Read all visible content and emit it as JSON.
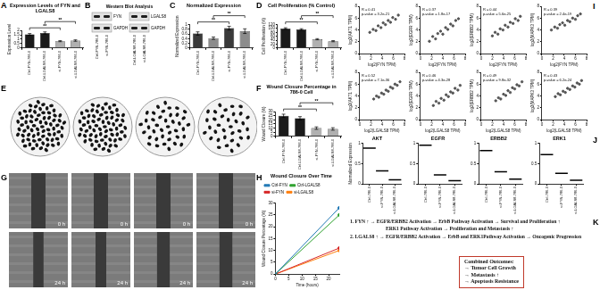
{
  "chart_data": [
    {
      "panel": "A",
      "type": "bar",
      "title": "Expression Levels of FYN and LGALS8",
      "categories": [
        "Ctrl-FYN-786-0",
        "Ctrl-LGALS8-786-0",
        "si-FYN-786-0",
        "si-LGALS8-786-0"
      ],
      "values": [
        1.55,
        1.72,
        0.78,
        0.85
      ],
      "errors": [
        0.1,
        0.12,
        0.06,
        0.08
      ],
      "colors": [
        "#1a1a1a",
        "#1a1a1a",
        "#b0b0b0",
        "#b0b0b0"
      ],
      "y_label": "Expression Level",
      "ylim": [
        0,
        2
      ],
      "yticks": [
        0,
        0.5,
        1,
        1.5,
        2
      ],
      "grid": false,
      "significance": [
        {
          "between": [
            0,
            2
          ],
          "label": "**"
        },
        {
          "between": [
            1,
            3
          ],
          "label": "**"
        }
      ]
    },
    {
      "panel": "C",
      "type": "bar",
      "title": "Normalized Expression",
      "categories": [
        "Ctrl-FYN-786-0",
        "Ctrl-LGALS8-786-0",
        "si-FYN-786-0",
        "si-LGALS8-786-0"
      ],
      "values": [
        0.62,
        0.42,
        0.85,
        0.72
      ],
      "errors": [
        0.07,
        0.05,
        0.08,
        0.1
      ],
      "colors": [
        "#3a3a3a",
        "#8c8c8c",
        "#3a3a3a",
        "#8c8c8c"
      ],
      "y_label": "Normalized Expression",
      "ylim": [
        0,
        1
      ],
      "yticks": [
        0,
        0.2,
        0.4,
        0.6,
        0.8,
        1
      ],
      "grid": false,
      "significance": [
        {
          "between": [
            0,
            2
          ],
          "label": "**"
        },
        {
          "between": [
            1,
            3
          ],
          "label": "**"
        }
      ]
    },
    {
      "panel": "D",
      "type": "bar",
      "title": "Cell Proliferation (% Control)",
      "categories": [
        "Ctrl-FYN-786-0",
        "Ctrl-LGALS8-786-0",
        "si-FYN-786-0",
        "si-LGALS8-786-0"
      ],
      "values": [
        100,
        95,
        45,
        35
      ],
      "errors": [
        4,
        4,
        3,
        3
      ],
      "colors": [
        "#1a1a1a",
        "#1a1a1a",
        "#b0b0b0",
        "#b0b0b0"
      ],
      "y_label": "Cell Proliferation (%)",
      "ylim": [
        0,
        120
      ],
      "yticks": [
        0,
        20,
        40,
        60,
        80,
        100,
        120
      ],
      "grid": false,
      "significance": [
        {
          "between": [
            0,
            2
          ],
          "label": "**"
        },
        {
          "between": [
            1,
            3
          ],
          "label": "**"
        }
      ]
    },
    {
      "panel": "F",
      "type": "bar",
      "title": "Wound Closure Percentage in 786-0 Cell",
      "categories": [
        "Ctrl-FYN-786-0",
        "Ctrl-LGALS8-786-0",
        "si-FYN-786-0",
        "si-LGALS8-786-0"
      ],
      "values": [
        25,
        22,
        10,
        9
      ],
      "errors": [
        2,
        2,
        1.5,
        1.5
      ],
      "colors": [
        "#1a1a1a",
        "#1a1a1a",
        "#b0b0b0",
        "#b0b0b0"
      ],
      "y_label": "Wound Closure (%)",
      "ylim": [
        0,
        30
      ],
      "yticks": [
        0,
        5,
        10,
        15,
        20,
        25,
        30
      ],
      "grid": false,
      "significance": [
        {
          "between": [
            0,
            2
          ],
          "label": "**"
        },
        {
          "between": [
            1,
            3
          ],
          "label": "**"
        }
      ]
    },
    {
      "panel": "H",
      "type": "line",
      "title": "Wound Closure Over Time",
      "x": [
        0,
        24
      ],
      "series": [
        {
          "name": "Ctrl-FYN",
          "color": "#1f77b4",
          "values": [
            0,
            28
          ]
        },
        {
          "name": "Ctrl-LGALS8",
          "color": "#2ca02c",
          "values": [
            0,
            25
          ]
        },
        {
          "name": "si-FYN",
          "color": "#d62728",
          "values": [
            0,
            11
          ]
        },
        {
          "name": "si-LGALS8",
          "color": "#ff7f0e",
          "values": [
            0,
            10
          ]
        }
      ],
      "x_label": "Time (hours)",
      "y_label": "Wound Closure Percentage (%)",
      "xlim": [
        0,
        24
      ],
      "xticks": [
        0,
        5,
        10,
        15,
        20
      ],
      "ylim": [
        0,
        30
      ],
      "yticks": [
        0,
        5,
        10,
        15,
        20,
        25,
        30
      ],
      "grid": false,
      "legend": "upper left",
      "marker": "circle",
      "line_style": "solid"
    },
    {
      "panel": "I",
      "type": "scatter",
      "x_label": "log2(FYN TPM)",
      "y_label": "log2(AKT1 TPM)",
      "x": [
        1.8,
        2.4,
        2.9,
        3.3,
        3.8,
        4.2,
        4.6,
        5.1,
        5.5,
        5.9,
        6.4,
        6.9
      ],
      "values": [
        3.6,
        4.1,
        3.9,
        4.7,
        4.4,
        5.2,
        4.9,
        5.6,
        5.3,
        6.1,
        5.8,
        6.5
      ],
      "annotations": [
        "R = 0.41",
        "p-value = 3.2e-21"
      ],
      "color": "#555555",
      "marker": "circle",
      "xlim": [
        0,
        8
      ],
      "xticks": [
        0,
        2,
        4,
        6,
        8
      ],
      "ylim": [
        0,
        8
      ],
      "yticks": [
        0,
        2,
        4,
        6,
        8
      ],
      "grid": false
    },
    {
      "type": "scatter",
      "x_label": "log2(FYN TPM)",
      "y_label": "log2(EGFR TPM)",
      "x": [
        1.6,
        2.2,
        2.7,
        3.1,
        3.6,
        4.0,
        4.5,
        4.9,
        5.4,
        5.8,
        6.3,
        6.8
      ],
      "values": [
        2.1,
        2.9,
        2.5,
        3.4,
        3.8,
        3.3,
        4.4,
        4.1,
        5.0,
        4.7,
        5.6,
        5.9
      ],
      "annotations": [
        "R = 0.37",
        "p-value = 1.8e-17"
      ],
      "color": "#555555",
      "marker": "circle",
      "xlim": [
        0,
        8
      ],
      "xticks": [
        0,
        2,
        4,
        6,
        8
      ],
      "ylim": [
        0,
        8
      ],
      "yticks": [
        0,
        2,
        4,
        6,
        8
      ],
      "grid": false
    },
    {
      "type": "scatter",
      "x_label": "log2(FYN TPM)",
      "y_label": "log2(ERBB2 TPM)",
      "x": [
        2.0,
        2.5,
        3.0,
        3.4,
        3.9,
        4.3,
        4.8,
        5.2,
        5.7,
        6.1,
        6.6,
        7.0
      ],
      "values": [
        3.0,
        3.6,
        3.3,
        4.2,
        4.0,
        4.8,
        4.5,
        5.3,
        5.1,
        5.9,
        5.6,
        6.3
      ],
      "annotations": [
        "R = 0.44",
        "p-value = 5.6e-25"
      ],
      "color": "#555555",
      "marker": "circle",
      "xlim": [
        0,
        8
      ],
      "xticks": [
        0,
        2,
        4,
        6,
        8
      ],
      "ylim": [
        0,
        8
      ],
      "yticks": [
        0,
        2,
        4,
        6,
        8
      ],
      "grid": false
    },
    {
      "type": "scatter",
      "x_label": "log2(FYN TPM)",
      "y_label": "log2(MAPK3 TPM)",
      "x": [
        1.7,
        2.3,
        2.8,
        3.2,
        3.7,
        4.1,
        4.6,
        5.0,
        5.5,
        6.0,
        6.4,
        6.9
      ],
      "values": [
        4.0,
        4.5,
        4.3,
        4.9,
        5.2,
        4.8,
        5.6,
        5.4,
        6.0,
        5.8,
        6.4,
        6.7
      ],
      "annotations": [
        "R = 0.39",
        "p-value = 2.4e-19"
      ],
      "color": "#555555",
      "marker": "circle",
      "xlim": [
        0,
        8
      ],
      "xticks": [
        0,
        2,
        4,
        6,
        8
      ],
      "ylim": [
        0,
        8
      ],
      "yticks": [
        0,
        2,
        4,
        6,
        8
      ],
      "grid": false
    },
    {
      "type": "scatter",
      "x_label": "log2(LGALS8 TPM)",
      "y_label": "log2(AKT1 TPM)",
      "x": [
        2.5,
        3.0,
        3.4,
        3.9,
        4.3,
        4.7,
        5.1,
        5.5,
        5.9,
        6.3,
        6.7,
        7.2
      ],
      "values": [
        3.5,
        4.0,
        3.8,
        4.5,
        4.3,
        5.0,
        4.8,
        5.5,
        5.3,
        6.0,
        5.8,
        6.4
      ],
      "annotations": [
        "R = 0.52",
        "p-value = 7.1e-36"
      ],
      "color": "#555555",
      "marker": "circle",
      "xlim": [
        0,
        8
      ],
      "xticks": [
        0,
        2,
        4,
        6,
        8
      ],
      "ylim": [
        0,
        8
      ],
      "yticks": [
        0,
        2,
        4,
        6,
        8
      ],
      "grid": false
    },
    {
      "type": "scatter",
      "x_label": "log2(LGALS8 TPM)",
      "y_label": "log2(EGFR TPM)",
      "x": [
        2.3,
        2.8,
        3.3,
        3.7,
        4.2,
        4.6,
        5.0,
        5.4,
        5.8,
        6.2,
        6.7,
        7.1
      ],
      "values": [
        2.4,
        3.1,
        2.8,
        3.6,
        3.3,
        4.2,
        3.9,
        4.7,
        4.5,
        5.3,
        5.0,
        5.8
      ],
      "annotations": [
        "R = 0.46",
        "p-value = 4.3e-28"
      ],
      "color": "#555555",
      "marker": "circle",
      "xlim": [
        0,
        8
      ],
      "xticks": [
        0,
        2,
        4,
        6,
        8
      ],
      "ylim": [
        0,
        8
      ],
      "yticks": [
        0,
        2,
        4,
        6,
        8
      ],
      "grid": false
    },
    {
      "type": "scatter",
      "x_label": "log2(LGALS8 TPM)",
      "y_label": "log2(ERBB2 TPM)",
      "x": [
        2.6,
        3.1,
        3.5,
        4.0,
        4.4,
        4.8,
        5.2,
        5.6,
        6.0,
        6.4,
        6.8,
        7.3
      ],
      "values": [
        3.2,
        3.7,
        3.5,
        4.3,
        4.1,
        4.9,
        4.6,
        5.4,
        5.2,
        5.9,
        5.7,
        6.4
      ],
      "annotations": [
        "R = 0.49",
        "p-value = 9.8e-32"
      ],
      "color": "#555555",
      "marker": "circle",
      "xlim": [
        0,
        8
      ],
      "xticks": [
        0,
        2,
        4,
        6,
        8
      ],
      "ylim": [
        0,
        8
      ],
      "yticks": [
        0,
        2,
        4,
        6,
        8
      ],
      "grid": false
    },
    {
      "type": "scatter",
      "x_label": "log2(LGALS8 TPM)",
      "y_label": "log2(MAPK3 TPM)",
      "x": [
        2.4,
        2.9,
        3.3,
        3.8,
        4.2,
        4.6,
        5.0,
        5.5,
        5.9,
        6.3,
        6.7,
        7.1
      ],
      "values": [
        3.9,
        4.4,
        4.2,
        4.8,
        4.6,
        5.3,
        5.1,
        5.7,
        5.5,
        6.2,
        6.0,
        6.6
      ],
      "annotations": [
        "R = 0.43",
        "p-value = 6.2e-24"
      ],
      "color": "#555555",
      "marker": "circle",
      "xlim": [
        0,
        8
      ],
      "xticks": [
        0,
        2,
        4,
        6,
        8
      ],
      "ylim": [
        0,
        8
      ],
      "yticks": [
        0,
        2,
        4,
        6,
        8
      ],
      "grid": false
    },
    {
      "panel": "J",
      "type": "line",
      "title": "AKT",
      "y_label": "Normalized Expression",
      "categories": [
        "Ctrl-786-0",
        "si-FYN-786-0",
        "si-LGALS8-786-0"
      ],
      "values": [
        0.88,
        0.32,
        0.1
      ],
      "color": "#000000",
      "marker": "line",
      "line_style": "none",
      "ylim": [
        0,
        1
      ],
      "yticks": [
        0,
        0.5,
        1
      ],
      "grid": false
    },
    {
      "type": "line",
      "title": "EGFR",
      "categories": [
        "Ctrl-786-0",
        "si-FYN-786-0",
        "si-LGALS8-786-0"
      ],
      "values": [
        0.95,
        0.22,
        0.08
      ],
      "color": "#000000",
      "marker": "line",
      "line_style": "none",
      "ylim": [
        0,
        1
      ],
      "yticks": [
        0,
        0.5,
        1
      ],
      "grid": false
    },
    {
      "type": "line",
      "title": "ERBB2",
      "categories": [
        "Ctrl-786-0",
        "si-FYN-786-0",
        "si-LGALS8-786-0"
      ],
      "values": [
        0.82,
        0.3,
        0.12
      ],
      "color": "#000000",
      "marker": "line",
      "line_style": "none",
      "ylim": [
        0,
        1
      ],
      "yticks": [
        0,
        0.5,
        1
      ],
      "grid": false
    },
    {
      "type": "line",
      "title": "ERK1",
      "categories": [
        "Ctrl-786-0",
        "si-FYN-786-0",
        "si-LGALS8-786-0"
      ],
      "values": [
        0.72,
        0.26,
        0.09
      ],
      "color": "#000000",
      "marker": "line",
      "line_style": "none",
      "ylim": [
        0,
        1
      ],
      "yticks": [
        0,
        0.5,
        1
      ],
      "grid": false
    }
  ],
  "western_blot": {
    "panel": "B",
    "title": "Western Blot Analysis",
    "blots": [
      {
        "protein": "FYN",
        "loading": "GAPDH"
      },
      {
        "protein": "LGALS8",
        "loading": "GAPDH"
      }
    ],
    "lanes": [
      "Ctrl-FYN-786-0",
      "si-FYN-786-0",
      "Ctrl-LGALS8-786-0",
      "si-LGALS8-786-0"
    ]
  },
  "colony_assay": {
    "panel": "E",
    "colonies": [
      72,
      68,
      40,
      34
    ]
  },
  "wound_images": {
    "panel": "G",
    "times": [
      "0 h",
      "24 h"
    ]
  },
  "pathway_summary": {
    "panel": "K",
    "lines": [
      "1. FYN ↑ → EGFR/ERBB2 Activation → ErbB Pathway Activation → Survival and Proliferation ↑",
      "ERK1 Pathway Activation → Proliferation and Metastasis ↑",
      "2. LGALS8 ↑ → EGFR/ERBB2 Activation → ErbB and ERK1Pathway Activation → Oncogenic Progression"
    ],
    "box_title": "Combined Outcomes:",
    "box_items": [
      "→ Tumor Cell Growth",
      "→ Metastasis ↑",
      "→ Apoptosis Resistance"
    ]
  }
}
